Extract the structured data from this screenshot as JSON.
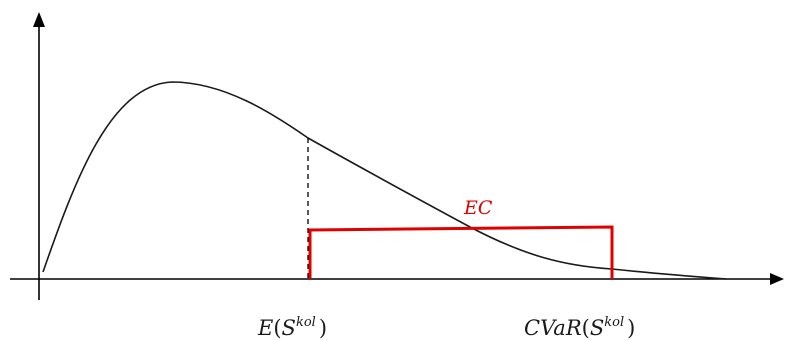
{
  "labels": {
    "expectation": {
      "name": "E",
      "var": "S",
      "superscript": "kol",
      "open_paren": "(",
      "close_paren": ")"
    },
    "cvar": {
      "name": "CVaR",
      "var": "S",
      "superscript": "kol",
      "open_paren": "(",
      "close_paren": ")"
    },
    "ec": "EC"
  },
  "colors": {
    "axis": "#000000",
    "curve": "#1a1a1a",
    "dashed": "#000000",
    "bracket": "#e00000",
    "ec_text": "#e00000"
  },
  "icons": {
    "y_axis_head": "arrow-up-icon",
    "x_axis_head": "arrow-right-icon"
  }
}
